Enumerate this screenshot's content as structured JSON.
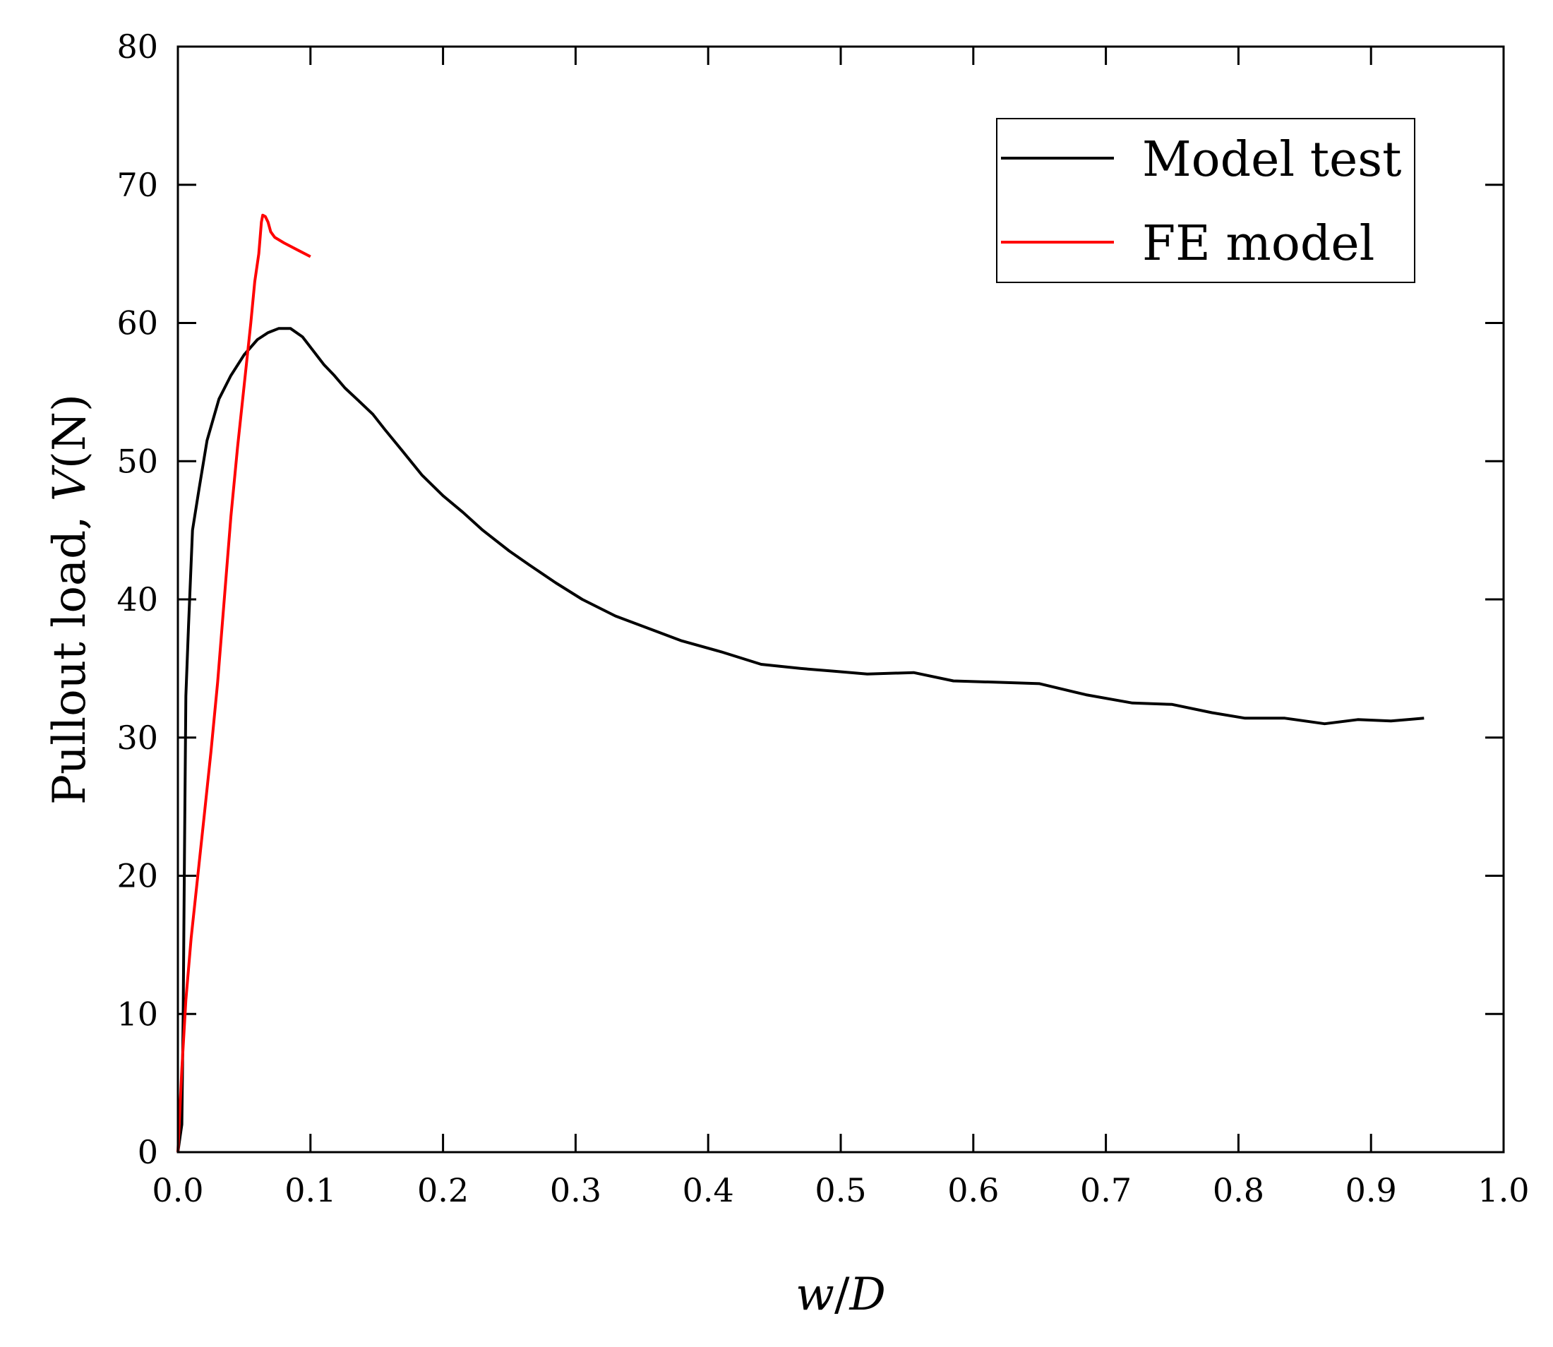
{
  "chart_data": {
    "type": "line",
    "title": "",
    "xlabel": {
      "var_italic": "w",
      "slash": "/",
      "var2_italic": "D"
    },
    "ylabel": {
      "prefix": "Pullout load, ",
      "var_italic": "V",
      "suffix": "(N)"
    },
    "xlim": [
      0.0,
      1.0
    ],
    "ylim": [
      0,
      80
    ],
    "xticks": [
      "0.0",
      "0.1",
      "0.2",
      "0.3",
      "0.4",
      "0.5",
      "0.6",
      "0.7",
      "0.8",
      "0.9",
      "1.0"
    ],
    "yticks": [
      "0",
      "10",
      "20",
      "30",
      "40",
      "50",
      "60",
      "70",
      "80"
    ],
    "grid": false,
    "legend_position": "top-right",
    "series": [
      {
        "name": "Model test",
        "color": "#000000",
        "points": [
          [
            0.0,
            0.0
          ],
          [
            0.003,
            2.0
          ],
          [
            0.004,
            10.0
          ],
          [
            0.005,
            22.0
          ],
          [
            0.006,
            33.0
          ],
          [
            0.008,
            38.0
          ],
          [
            0.011,
            45.0
          ],
          [
            0.016,
            48.0
          ],
          [
            0.022,
            51.5
          ],
          [
            0.031,
            54.5
          ],
          [
            0.04,
            56.2
          ],
          [
            0.05,
            57.7
          ],
          [
            0.06,
            58.8
          ],
          [
            0.068,
            59.3
          ],
          [
            0.076,
            59.6
          ],
          [
            0.085,
            59.6
          ],
          [
            0.094,
            59.0
          ],
          [
            0.102,
            58.0
          ],
          [
            0.11,
            57.0
          ],
          [
            0.118,
            56.2
          ],
          [
            0.126,
            55.3
          ],
          [
            0.136,
            54.4
          ],
          [
            0.147,
            53.4
          ],
          [
            0.156,
            52.3
          ],
          [
            0.168,
            50.9
          ],
          [
            0.184,
            49.0
          ],
          [
            0.2,
            47.5
          ],
          [
            0.215,
            46.3
          ],
          [
            0.23,
            45.0
          ],
          [
            0.25,
            43.5
          ],
          [
            0.265,
            42.5
          ],
          [
            0.285,
            41.2
          ],
          [
            0.305,
            40.0
          ],
          [
            0.33,
            38.8
          ],
          [
            0.355,
            37.9
          ],
          [
            0.38,
            37.0
          ],
          [
            0.41,
            36.2
          ],
          [
            0.44,
            35.3
          ],
          [
            0.47,
            35.0
          ],
          [
            0.495,
            34.8
          ],
          [
            0.52,
            34.6
          ],
          [
            0.555,
            34.7
          ],
          [
            0.585,
            34.1
          ],
          [
            0.62,
            34.0
          ],
          [
            0.65,
            33.9
          ],
          [
            0.685,
            33.1
          ],
          [
            0.72,
            32.5
          ],
          [
            0.75,
            32.4
          ],
          [
            0.78,
            31.8
          ],
          [
            0.805,
            31.4
          ],
          [
            0.835,
            31.4
          ],
          [
            0.865,
            31.0
          ],
          [
            0.89,
            31.3
          ],
          [
            0.915,
            31.2
          ],
          [
            0.94,
            31.4
          ]
        ]
      },
      {
        "name": "FE model",
        "color": "#ff0000",
        "points": [
          [
            0.0,
            0.0
          ],
          [
            0.003,
            6.0
          ],
          [
            0.006,
            11.0
          ],
          [
            0.01,
            15.5
          ],
          [
            0.015,
            20.0
          ],
          [
            0.02,
            24.5
          ],
          [
            0.025,
            29.0
          ],
          [
            0.03,
            34.0
          ],
          [
            0.035,
            40.0
          ],
          [
            0.04,
            46.0
          ],
          [
            0.045,
            51.0
          ],
          [
            0.05,
            55.5
          ],
          [
            0.055,
            60.0
          ],
          [
            0.058,
            63.0
          ],
          [
            0.061,
            65.0
          ],
          [
            0.063,
            67.3
          ],
          [
            0.064,
            67.8
          ],
          [
            0.066,
            67.7
          ],
          [
            0.068,
            67.3
          ],
          [
            0.07,
            66.6
          ],
          [
            0.073,
            66.2
          ],
          [
            0.08,
            65.8
          ],
          [
            0.09,
            65.3
          ],
          [
            0.1,
            64.8
          ]
        ]
      }
    ]
  }
}
